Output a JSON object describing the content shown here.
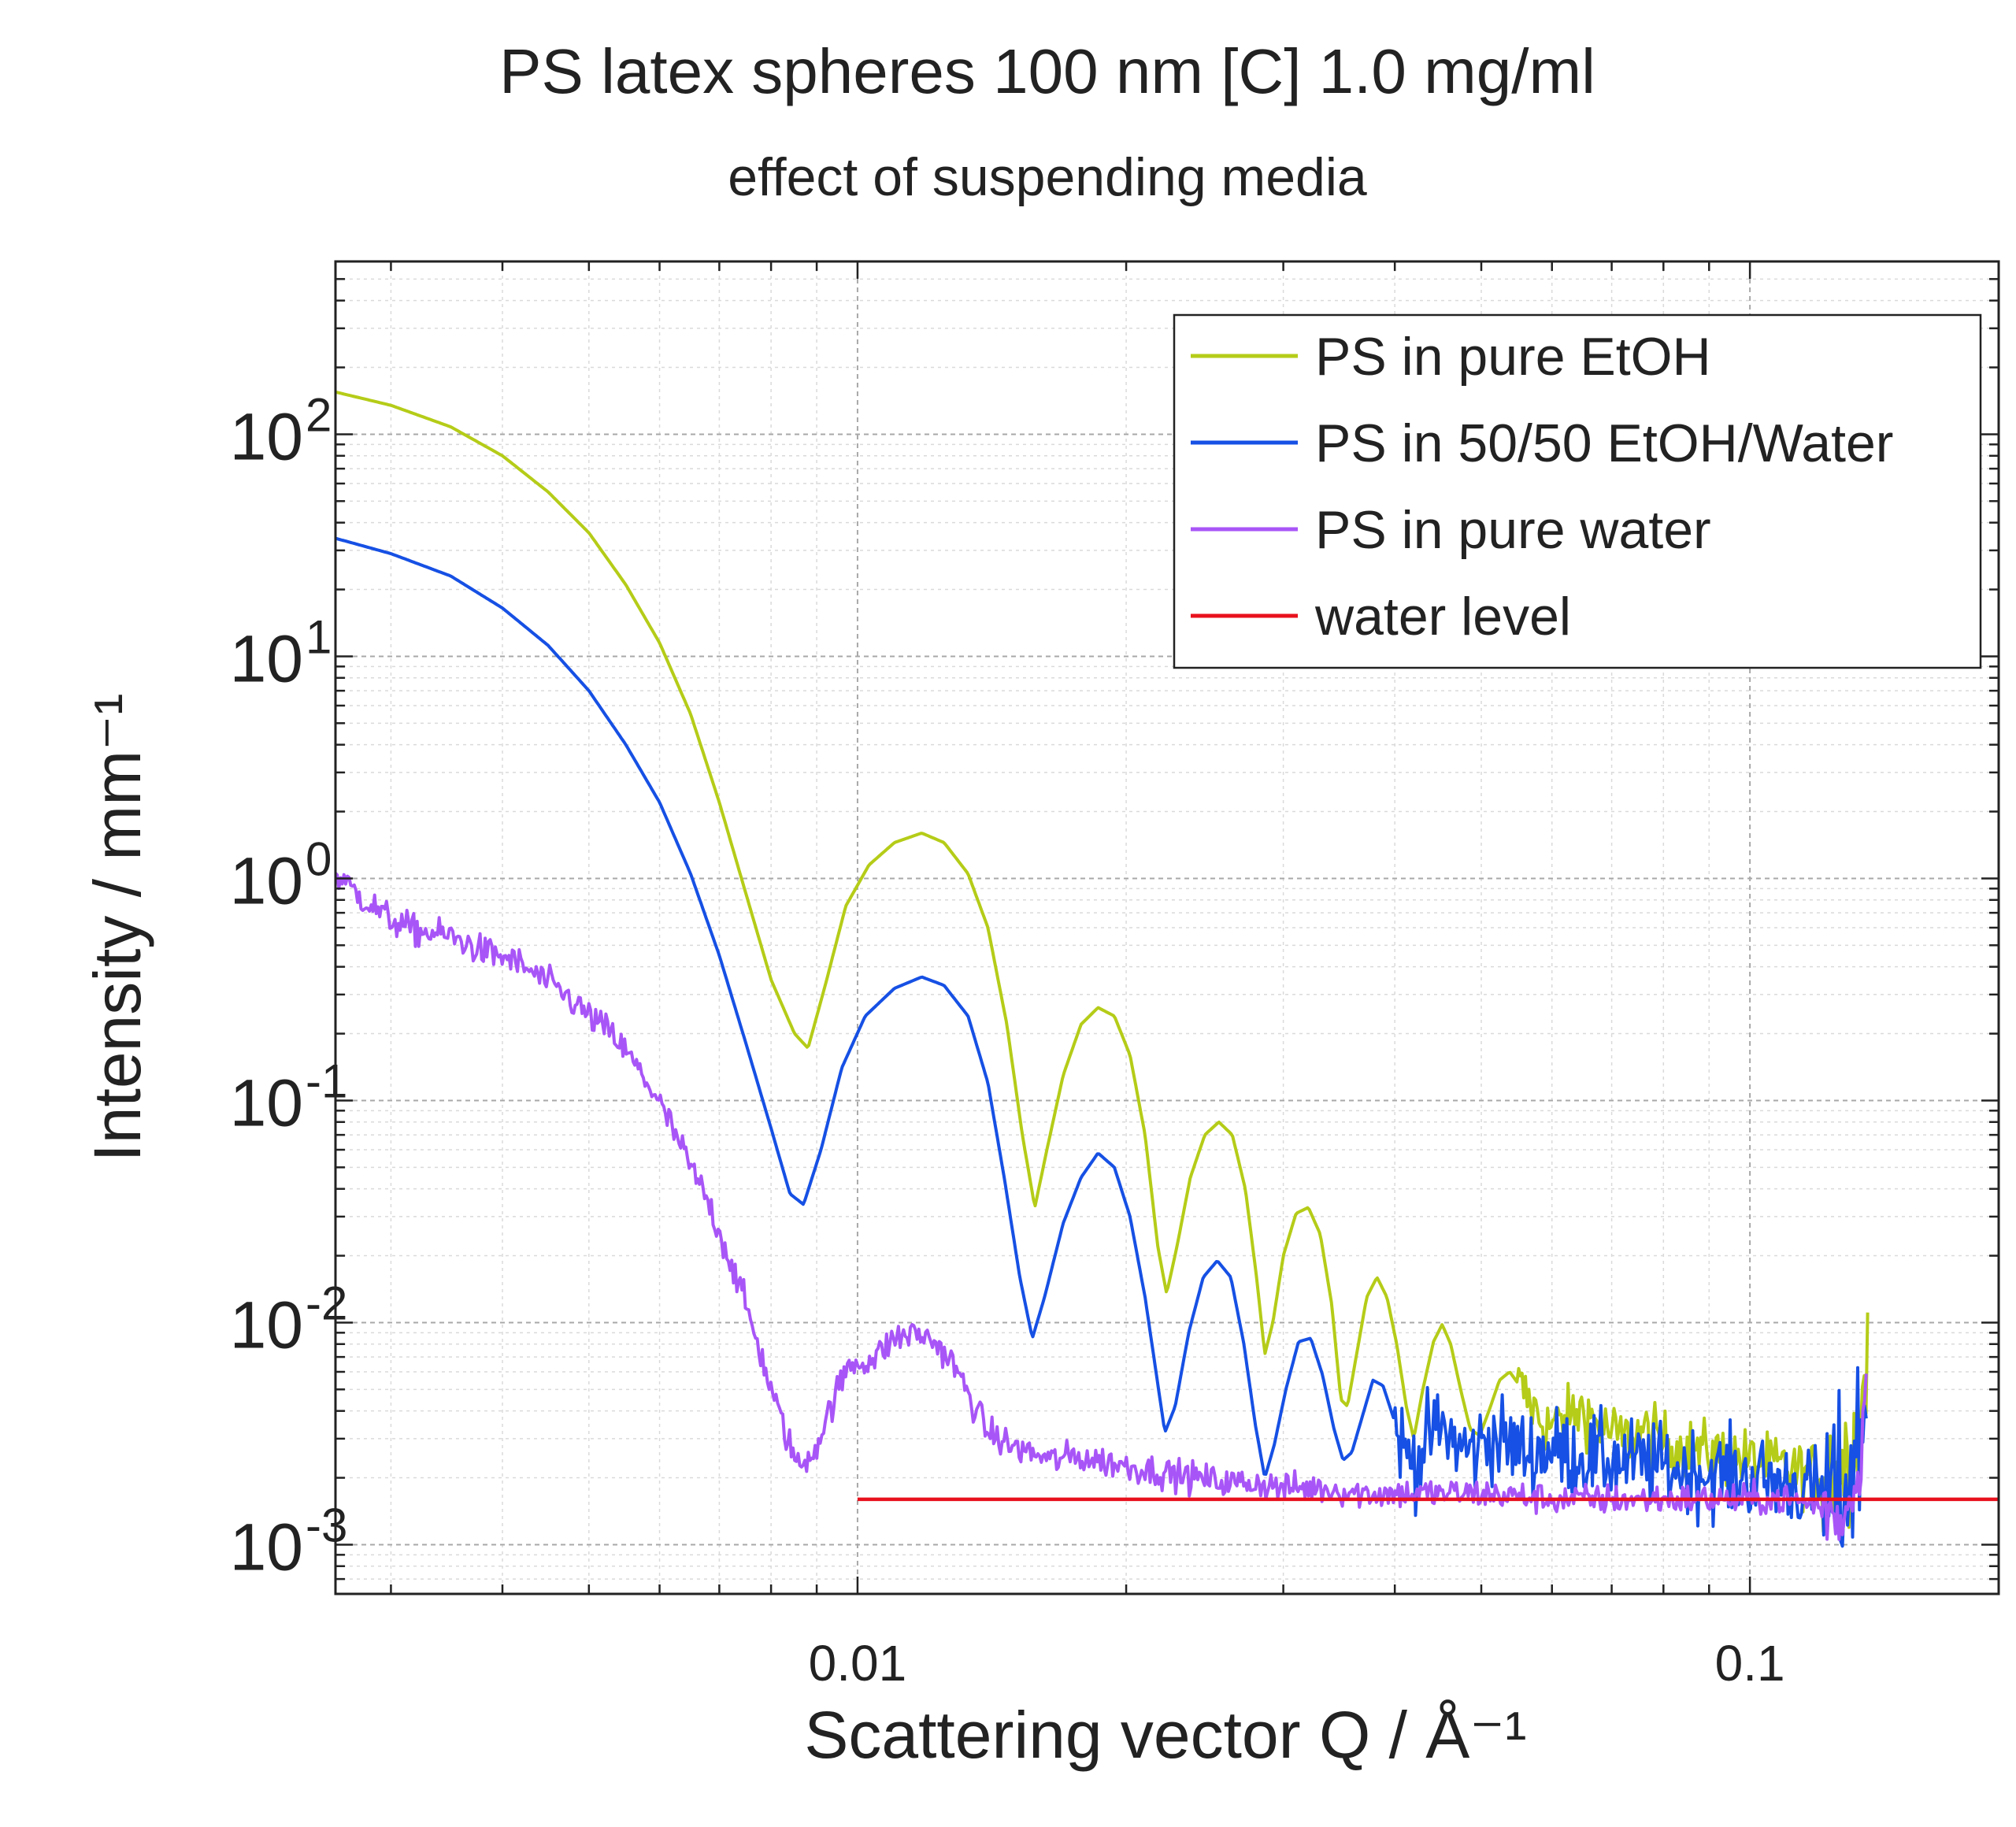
{
  "chart_data": {
    "type": "line",
    "title": "PS latex spheres 100 nm [C] 1.0 mg/ml",
    "subtitle": "effect of suspending media",
    "xlabel": "Scattering vector Q / Å⁻¹",
    "ylabel": "Intensity / mm⁻¹",
    "x_scale": "log",
    "y_scale": "log",
    "xlim": [
      0.0026,
      0.19
    ],
    "ylim": [
      0.0006,
      600
    ],
    "x_ticks": [
      {
        "value": 0.01,
        "label": "0.01"
      },
      {
        "value": 0.1,
        "label": "0.1"
      }
    ],
    "y_ticks": [
      {
        "value": 100,
        "base": "10",
        "exp": "2"
      },
      {
        "value": 10,
        "base": "10",
        "exp": "1"
      },
      {
        "value": 1,
        "base": "10",
        "exp": "0"
      },
      {
        "value": 0.1,
        "base": "10",
        "exp": "-1"
      },
      {
        "value": 0.01,
        "base": "10",
        "exp": "-2"
      },
      {
        "value": 0.001,
        "base": "10",
        "exp": "-3"
      }
    ],
    "grid": true,
    "legend_position": "top-right",
    "series": [
      {
        "name": "PS in pure EtOH",
        "color": "#b5cc18",
        "noisy_from": 0.055,
        "noise": 0.1,
        "points": [
          [
            0.0026,
            155
          ],
          [
            0.003,
            135
          ],
          [
            0.0035,
            108
          ],
          [
            0.004,
            80
          ],
          [
            0.0045,
            55
          ],
          [
            0.005,
            36
          ],
          [
            0.0055,
            21
          ],
          [
            0.006,
            11.5
          ],
          [
            0.0065,
            5.5
          ],
          [
            0.007,
            2.2
          ],
          [
            0.0075,
            0.85
          ],
          [
            0.008,
            0.35
          ],
          [
            0.0085,
            0.2
          ],
          [
            0.0088,
            0.172
          ],
          [
            0.0092,
            0.33
          ],
          [
            0.0097,
            0.75
          ],
          [
            0.0103,
            1.15
          ],
          [
            0.011,
            1.45
          ],
          [
            0.0118,
            1.6
          ],
          [
            0.0125,
            1.45
          ],
          [
            0.0133,
            1.05
          ],
          [
            0.014,
            0.6
          ],
          [
            0.0147,
            0.22
          ],
          [
            0.0153,
            0.07
          ],
          [
            0.0158,
            0.033
          ],
          [
            0.0163,
            0.06
          ],
          [
            0.017,
            0.13
          ],
          [
            0.0178,
            0.22
          ],
          [
            0.0186,
            0.262
          ],
          [
            0.0194,
            0.24
          ],
          [
            0.0202,
            0.16
          ],
          [
            0.021,
            0.07
          ],
          [
            0.0217,
            0.022
          ],
          [
            0.0222,
            0.0135
          ],
          [
            0.0228,
            0.022
          ],
          [
            0.0236,
            0.045
          ],
          [
            0.0245,
            0.07
          ],
          [
            0.0254,
            0.08
          ],
          [
            0.0263,
            0.07
          ],
          [
            0.0272,
            0.04
          ],
          [
            0.028,
            0.016
          ],
          [
            0.0286,
            0.0072
          ],
          [
            0.0292,
            0.01
          ],
          [
            0.03,
            0.02
          ],
          [
            0.031,
            0.031
          ],
          [
            0.032,
            0.033
          ],
          [
            0.033,
            0.025
          ],
          [
            0.034,
            0.012
          ],
          [
            0.0348,
            0.0045
          ],
          [
            0.0354,
            0.0042
          ],
          [
            0.0362,
            0.007
          ],
          [
            0.0372,
            0.013
          ],
          [
            0.0382,
            0.016
          ],
          [
            0.0392,
            0.013
          ],
          [
            0.0402,
            0.008
          ],
          [
            0.0412,
            0.0042
          ],
          [
            0.042,
            0.003
          ],
          [
            0.043,
            0.005
          ],
          [
            0.0442,
            0.0082
          ],
          [
            0.0452,
            0.0098
          ],
          [
            0.0462,
            0.008
          ],
          [
            0.0474,
            0.005
          ],
          [
            0.0486,
            0.0033
          ],
          [
            0.0498,
            0.0031
          ],
          [
            0.051,
            0.004
          ],
          [
            0.0524,
            0.0055
          ],
          [
            0.0538,
            0.006
          ],
          [
            0.0552,
            0.0052
          ],
          [
            0.057,
            0.0042
          ],
          [
            0.059,
            0.0034
          ],
          [
            0.062,
            0.0036
          ],
          [
            0.065,
            0.0041
          ],
          [
            0.068,
            0.0034
          ],
          [
            0.072,
            0.003
          ],
          [
            0.076,
            0.0032
          ],
          [
            0.08,
            0.0029
          ],
          [
            0.085,
            0.0027
          ],
          [
            0.09,
            0.0026
          ],
          [
            0.095,
            0.0025
          ],
          [
            0.1,
            0.0024
          ],
          [
            0.105,
            0.0023
          ],
          [
            0.11,
            0.0022
          ],
          [
            0.115,
            0.0021
          ],
          [
            0.12,
            0.0021
          ],
          [
            0.125,
            0.0022
          ],
          [
            0.129,
            0.0025
          ],
          [
            0.132,
            0.0031
          ],
          [
            0.134,
            0.0045
          ],
          [
            0.1355,
            0.0088
          ]
        ]
      },
      {
        "name": "PS in 50/50 EtOH/Water",
        "color": "#1650e4",
        "noisy_from": 0.04,
        "noise": 0.14,
        "points": [
          [
            0.0026,
            34
          ],
          [
            0.003,
            29
          ],
          [
            0.0035,
            23
          ],
          [
            0.004,
            16.5
          ],
          [
            0.0045,
            11.2
          ],
          [
            0.005,
            7
          ],
          [
            0.0055,
            4
          ],
          [
            0.006,
            2.2
          ],
          [
            0.0065,
            1.05
          ],
          [
            0.007,
            0.45
          ],
          [
            0.0075,
            0.18
          ],
          [
            0.008,
            0.075
          ],
          [
            0.0084,
            0.038
          ],
          [
            0.0087,
            0.034
          ],
          [
            0.0091,
            0.06
          ],
          [
            0.0096,
            0.14
          ],
          [
            0.0102,
            0.24
          ],
          [
            0.011,
            0.32
          ],
          [
            0.0118,
            0.36
          ],
          [
            0.0125,
            0.33
          ],
          [
            0.0133,
            0.24
          ],
          [
            0.014,
            0.12
          ],
          [
            0.0146,
            0.045
          ],
          [
            0.0152,
            0.016
          ],
          [
            0.0157,
            0.0085
          ],
          [
            0.0162,
            0.013
          ],
          [
            0.017,
            0.028
          ],
          [
            0.0178,
            0.045
          ],
          [
            0.0186,
            0.058
          ],
          [
            0.0194,
            0.05
          ],
          [
            0.0202,
            0.03
          ],
          [
            0.021,
            0.013
          ],
          [
            0.0216,
            0.006
          ],
          [
            0.0221,
            0.0032
          ],
          [
            0.0227,
            0.0042
          ],
          [
            0.0235,
            0.009
          ],
          [
            0.0244,
            0.016
          ],
          [
            0.0253,
            0.019
          ],
          [
            0.0262,
            0.016
          ],
          [
            0.0271,
            0.008
          ],
          [
            0.0279,
            0.0035
          ],
          [
            0.0286,
            0.002
          ],
          [
            0.0293,
            0.0028
          ],
          [
            0.0302,
            0.005
          ],
          [
            0.0312,
            0.0082
          ],
          [
            0.0322,
            0.0085
          ],
          [
            0.0332,
            0.0058
          ],
          [
            0.0342,
            0.0033
          ],
          [
            0.035,
            0.0024
          ],
          [
            0.0358,
            0.0026
          ],
          [
            0.0368,
            0.0038
          ],
          [
            0.0378,
            0.0055
          ],
          [
            0.0388,
            0.0052
          ],
          [
            0.0398,
            0.0038
          ],
          [
            0.041,
            0.0026
          ],
          [
            0.0424,
            0.0024
          ],
          [
            0.044,
            0.0032
          ],
          [
            0.0455,
            0.0033
          ],
          [
            0.047,
            0.0028
          ],
          [
            0.049,
            0.0026
          ],
          [
            0.051,
            0.0031
          ],
          [
            0.053,
            0.0029
          ],
          [
            0.056,
            0.0026
          ],
          [
            0.06,
            0.0027
          ],
          [
            0.065,
            0.0025
          ],
          [
            0.07,
            0.0024
          ],
          [
            0.076,
            0.0023
          ],
          [
            0.082,
            0.0022
          ],
          [
            0.09,
            0.0021
          ],
          [
            0.1,
            0.002
          ],
          [
            0.11,
            0.0019
          ],
          [
            0.12,
            0.0017
          ],
          [
            0.126,
            0.0016
          ],
          [
            0.13,
            0.0022
          ],
          [
            0.133,
            0.003
          ],
          [
            0.135,
            0.0045
          ]
        ]
      },
      {
        "name": "PS in pure water",
        "color": "#a855f7",
        "noisy_from": 0.0026,
        "noise": 0.05,
        "points": [
          [
            0.0026,
            1.05
          ],
          [
            0.0028,
            0.8
          ],
          [
            0.003,
            0.65
          ],
          [
            0.0032,
            0.58
          ],
          [
            0.0035,
            0.55
          ],
          [
            0.0038,
            0.47
          ],
          [
            0.0041,
            0.43
          ],
          [
            0.0044,
            0.36
          ],
          [
            0.0047,
            0.3
          ],
          [
            0.005,
            0.24
          ],
          [
            0.0053,
            0.2
          ],
          [
            0.0056,
            0.15
          ],
          [
            0.0059,
            0.11
          ],
          [
            0.0062,
            0.075
          ],
          [
            0.0065,
            0.05
          ],
          [
            0.0068,
            0.035
          ],
          [
            0.0071,
            0.022
          ],
          [
            0.0074,
            0.014
          ],
          [
            0.0077,
            0.0085
          ],
          [
            0.008,
            0.005
          ],
          [
            0.0083,
            0.0032
          ],
          [
            0.0086,
            0.0022
          ],
          [
            0.009,
            0.0028
          ],
          [
            0.0094,
            0.0045
          ],
          [
            0.0098,
            0.0065
          ],
          [
            0.0104,
            0.0068
          ],
          [
            0.011,
            0.0085
          ],
          [
            0.0116,
            0.009
          ],
          [
            0.0122,
            0.0082
          ],
          [
            0.0128,
            0.0065
          ],
          [
            0.0134,
            0.0045
          ],
          [
            0.014,
            0.0032
          ],
          [
            0.0148,
            0.0028
          ],
          [
            0.0156,
            0.0026
          ],
          [
            0.0165,
            0.0024
          ],
          [
            0.0175,
            0.0025
          ],
          [
            0.0185,
            0.0024
          ],
          [
            0.0196,
            0.0023
          ],
          [
            0.0208,
            0.0022
          ],
          [
            0.0222,
            0.0021
          ],
          [
            0.024,
            0.002
          ],
          [
            0.026,
            0.0019
          ],
          [
            0.028,
            0.0019
          ],
          [
            0.03,
            0.0018
          ],
          [
            0.033,
            0.0018
          ],
          [
            0.037,
            0.0017
          ],
          [
            0.042,
            0.0017
          ],
          [
            0.05,
            0.0017
          ],
          [
            0.06,
            0.0016
          ],
          [
            0.07,
            0.0016
          ],
          [
            0.08,
            0.0016
          ],
          [
            0.09,
            0.0016
          ],
          [
            0.1,
            0.0016
          ],
          [
            0.11,
            0.0016
          ],
          [
            0.12,
            0.0015
          ],
          [
            0.126,
            0.0013
          ],
          [
            0.13,
            0.0016
          ],
          [
            0.133,
            0.0024
          ],
          [
            0.135,
            0.0058
          ]
        ]
      },
      {
        "name": "water level",
        "color": "#e8111d",
        "noisy_from": null,
        "noise": 0,
        "points": [
          [
            0.01,
            0.0016
          ],
          [
            0.19,
            0.0016
          ]
        ]
      }
    ]
  }
}
